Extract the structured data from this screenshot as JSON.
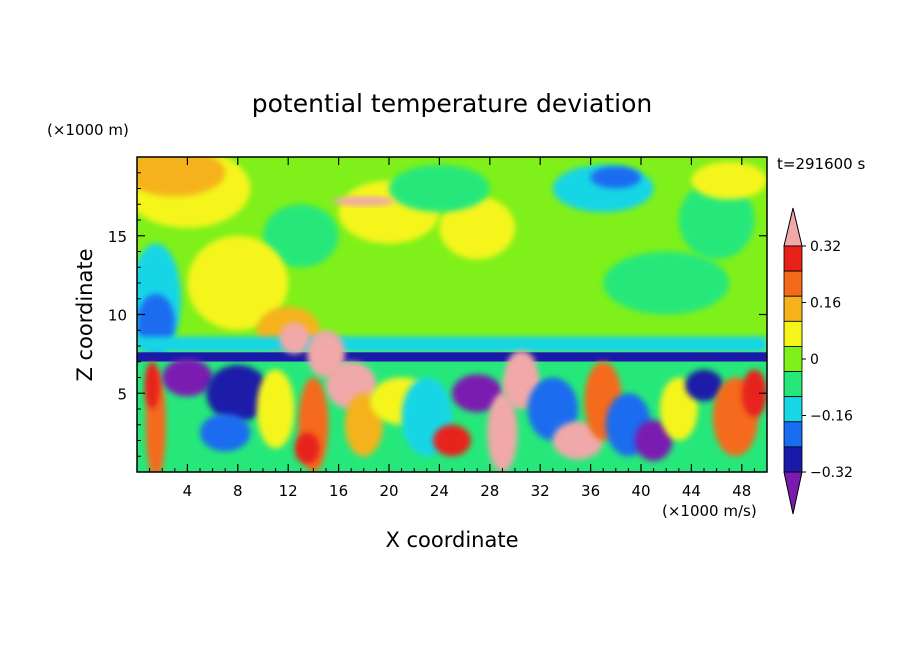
{
  "chart_data": {
    "type": "heatmap",
    "title": "potential temperature deviation",
    "xlabel": "X coordinate",
    "ylabel": "Z coordinate",
    "x_unit": "(×1000 m/s)",
    "y_unit": "(×1000 m)",
    "time_label": "t=291600 s",
    "xlim": [
      0,
      50
    ],
    "ylim": [
      0,
      20
    ],
    "x_ticks": [
      4,
      8,
      12,
      16,
      20,
      24,
      28,
      32,
      36,
      40,
      44,
      48
    ],
    "y_ticks": [
      5,
      10,
      15
    ],
    "colorbar": {
      "levels": [
        -0.4,
        -0.32,
        -0.24,
        -0.16,
        -0.08,
        0,
        0.08,
        0.16,
        0.24,
        0.32,
        0.4
      ],
      "tick_values": [
        0.32,
        0.16,
        0,
        -0.16,
        -0.32
      ],
      "tick_labels": [
        "0.32",
        "0.16",
        "0",
        "−0.16",
        "−0.32"
      ],
      "colors": [
        "#7a1ab0",
        "#1a1aa8",
        "#1a6cf0",
        "#19d6e6",
        "#26e87a",
        "#7ff01a",
        "#f5f51a",
        "#f5b21a",
        "#f56a1a",
        "#e8221a",
        "#f0a8a8"
      ],
      "extend": "both"
    },
    "grid": false
  }
}
